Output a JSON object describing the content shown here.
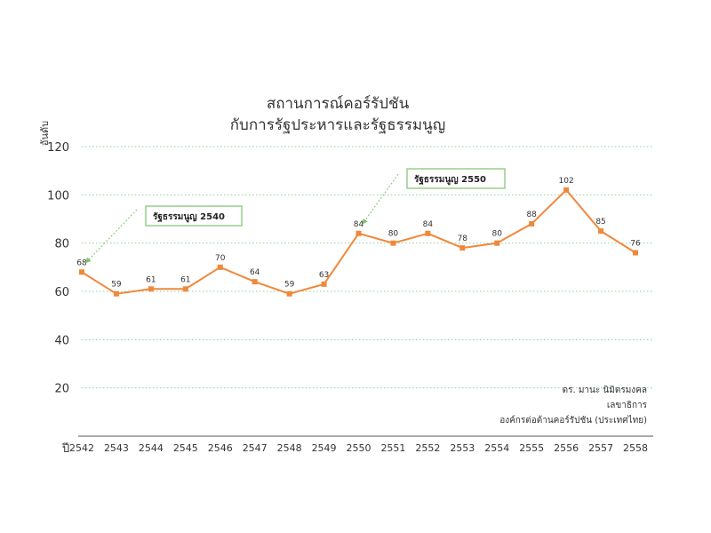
{
  "chart_data": {
    "type": "line",
    "title_lines": [
      "สถานการณ์คอร์รัปชัน",
      "กับการรัฐประหารและรัฐธรรมนูญ"
    ],
    "ylabel": "อันดับ",
    "xlabel": "ปี",
    "ylim": [
      0,
      120
    ],
    "yticks": [
      20,
      40,
      60,
      80,
      100,
      120
    ],
    "grid": true,
    "categories": [
      "2542",
      "2543",
      "2544",
      "2545",
      "2546",
      "2547",
      "2548",
      "2549",
      "2550",
      "2551",
      "2552",
      "2553",
      "2554",
      "2555",
      "2556",
      "2557",
      "2558"
    ],
    "series": [
      {
        "values": [
          68,
          59,
          61,
          61,
          70,
          64,
          59,
          63,
          84,
          80,
          84,
          78,
          80,
          88,
          102,
          85,
          76
        ],
        "color": "#f0883a"
      }
    ],
    "annotations": [
      {
        "label": "รัฐธรรมนูญ 2540",
        "category": "2542"
      },
      {
        "label": "รัฐธรรมนูญ 2550",
        "category": "2550"
      }
    ],
    "credit_lines": [
      "ดร. มานะ นิมิตรมงคล",
      "เลขาธิการ",
      "องค์กรต่อต้านคอร์รัปชัน (ประเทศไทย)"
    ],
    "colors": {
      "line": "#f0883a",
      "grid": "#8fcf9a",
      "annotation_border": "#7dc36b",
      "arrow": "#7dc36b"
    }
  }
}
